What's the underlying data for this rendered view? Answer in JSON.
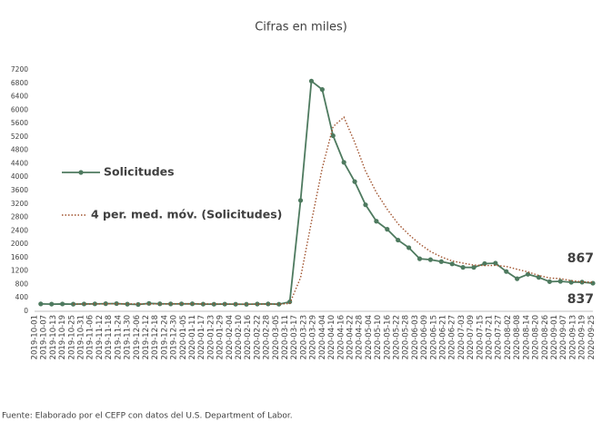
{
  "chart_data": {
    "type": "line",
    "title": "Cifras en miles)",
    "source": "Fuente: Elaborado por el CEFP con datos del U.S. Department of Labor.",
    "x": [
      "2019-10-05",
      "2019-10-12",
      "2019-10-19",
      "2019-10-26",
      "2019-11-02",
      "2019-11-09",
      "2019-11-16",
      "2019-11-23",
      "2019-11-30",
      "2019-12-07",
      "2019-12-14",
      "2019-12-21",
      "2019-12-28",
      "2020-01-04",
      "2020-01-11",
      "2020-01-18",
      "2020-01-25",
      "2020-02-01",
      "2020-02-08",
      "2020-02-15",
      "2020-02-22",
      "2020-02-29",
      "2020-03-07",
      "2020-03-14",
      "2020-03-21",
      "2020-03-28",
      "2020-04-04",
      "2020-04-11",
      "2020-04-18",
      "2020-04-25",
      "2020-05-02",
      "2020-05-09",
      "2020-05-16",
      "2020-05-23",
      "2020-05-30",
      "2020-06-06",
      "2020-06-13",
      "2020-06-20",
      "2020-06-27",
      "2020-07-04",
      "2020-07-11",
      "2020-07-18",
      "2020-07-25",
      "2020-08-01",
      "2020-08-08",
      "2020-08-15",
      "2020-08-22",
      "2020-08-29",
      "2020-09-05",
      "2020-09-12",
      "2020-09-19",
      "2020-09-26"
    ],
    "series": [
      {
        "name": "Solicitudes",
        "color": "#4e7a5f",
        "marker": true,
        "dash": false,
        "values": [
          219,
          214,
          218,
          213,
          218,
          221,
          227,
          228,
          213,
          203,
          235,
          224,
          220,
          222,
          223,
          214,
          211,
          215,
          212,
          209,
          216,
          219,
          211,
          282,
          3307,
          6867,
          6615,
          5237,
          4442,
          3867,
          3176,
          2687,
          2446,
          2123,
          1897,
          1566,
          1540,
          1482,
          1413,
          1310,
          1308,
          1422,
          1435,
          1186,
          971,
          1104,
          1011,
          884,
          893,
          866,
          870,
          837
        ]
      },
      {
        "name": "4 per. med. móv. (Solicitudes)",
        "color": "#a0522d",
        "marker": false,
        "dash": true,
        "end_color": "#a67c3d",
        "values": [
          null,
          null,
          null,
          216,
          215.8,
          217.5,
          219.8,
          223.5,
          222.3,
          217.8,
          219.8,
          218.8,
          220.5,
          225.3,
          222.3,
          219.8,
          217.5,
          215.8,
          213,
          211.8,
          213,
          214,
          213.8,
          232,
          1004.8,
          2666.8,
          4267.8,
          5506.5,
          5790.3,
          5040.3,
          4180.5,
          3543,
          3044,
          2608,
          2288.3,
          2008,
          1781.5,
          1621.3,
          1500.3,
          1436.3,
          1378.3,
          1363.3,
          1368.8,
          1337.8,
          1253.5,
          1174,
          1068,
          992.5,
          973,
          913.5,
          878.3,
          867
        ]
      }
    ],
    "xlim": [
      "2019-10-01",
      "2020-09-26"
    ],
    "xticks": [
      "2019-10-01",
      "2019-10-07",
      "2019-10-13",
      "2019-10-19",
      "2019-10-25",
      "2019-10-31",
      "2019-11-06",
      "2019-11-12",
      "2019-11-18",
      "2019-11-24",
      "2019-11-30",
      "2019-12-06",
      "2019-12-12",
      "2019-12-18",
      "2019-12-24",
      "2019-12-30",
      "2020-01-05",
      "2020-01-11",
      "2020-01-17",
      "2020-01-23",
      "2020-01-29",
      "2020-02-04",
      "2020-02-10",
      "2020-02-16",
      "2020-02-22",
      "2020-02-28",
      "2020-03-05",
      "2020-03-11",
      "2020-03-17",
      "2020-03-23",
      "2020-03-29",
      "2020-04-04",
      "2020-04-10",
      "2020-04-16",
      "2020-04-22",
      "2020-04-28",
      "2020-05-04",
      "2020-05-10",
      "2020-05-16",
      "2020-05-22",
      "2020-05-28",
      "2020-06-03",
      "2020-06-09",
      "2020-06-15",
      "2020-06-21",
      "2020-06-27",
      "2020-07-03",
      "2020-07-09",
      "2020-07-15",
      "2020-07-21",
      "2020-07-27",
      "2020-08-02",
      "2020-08-08",
      "2020-08-14",
      "2020-08-20",
      "2020-08-26",
      "2020-09-01",
      "2020-09-07",
      "2020-09-13",
      "2020-09-19",
      "2020-09-25"
    ],
    "ylim": [
      0,
      7200
    ],
    "yticks": [
      0,
      400,
      800,
      1200,
      1600,
      2000,
      2400,
      2800,
      3200,
      3600,
      4000,
      4400,
      4800,
      5200,
      5600,
      6000,
      6400,
      6800,
      7200
    ],
    "grid": false,
    "legend": "left"
  }
}
